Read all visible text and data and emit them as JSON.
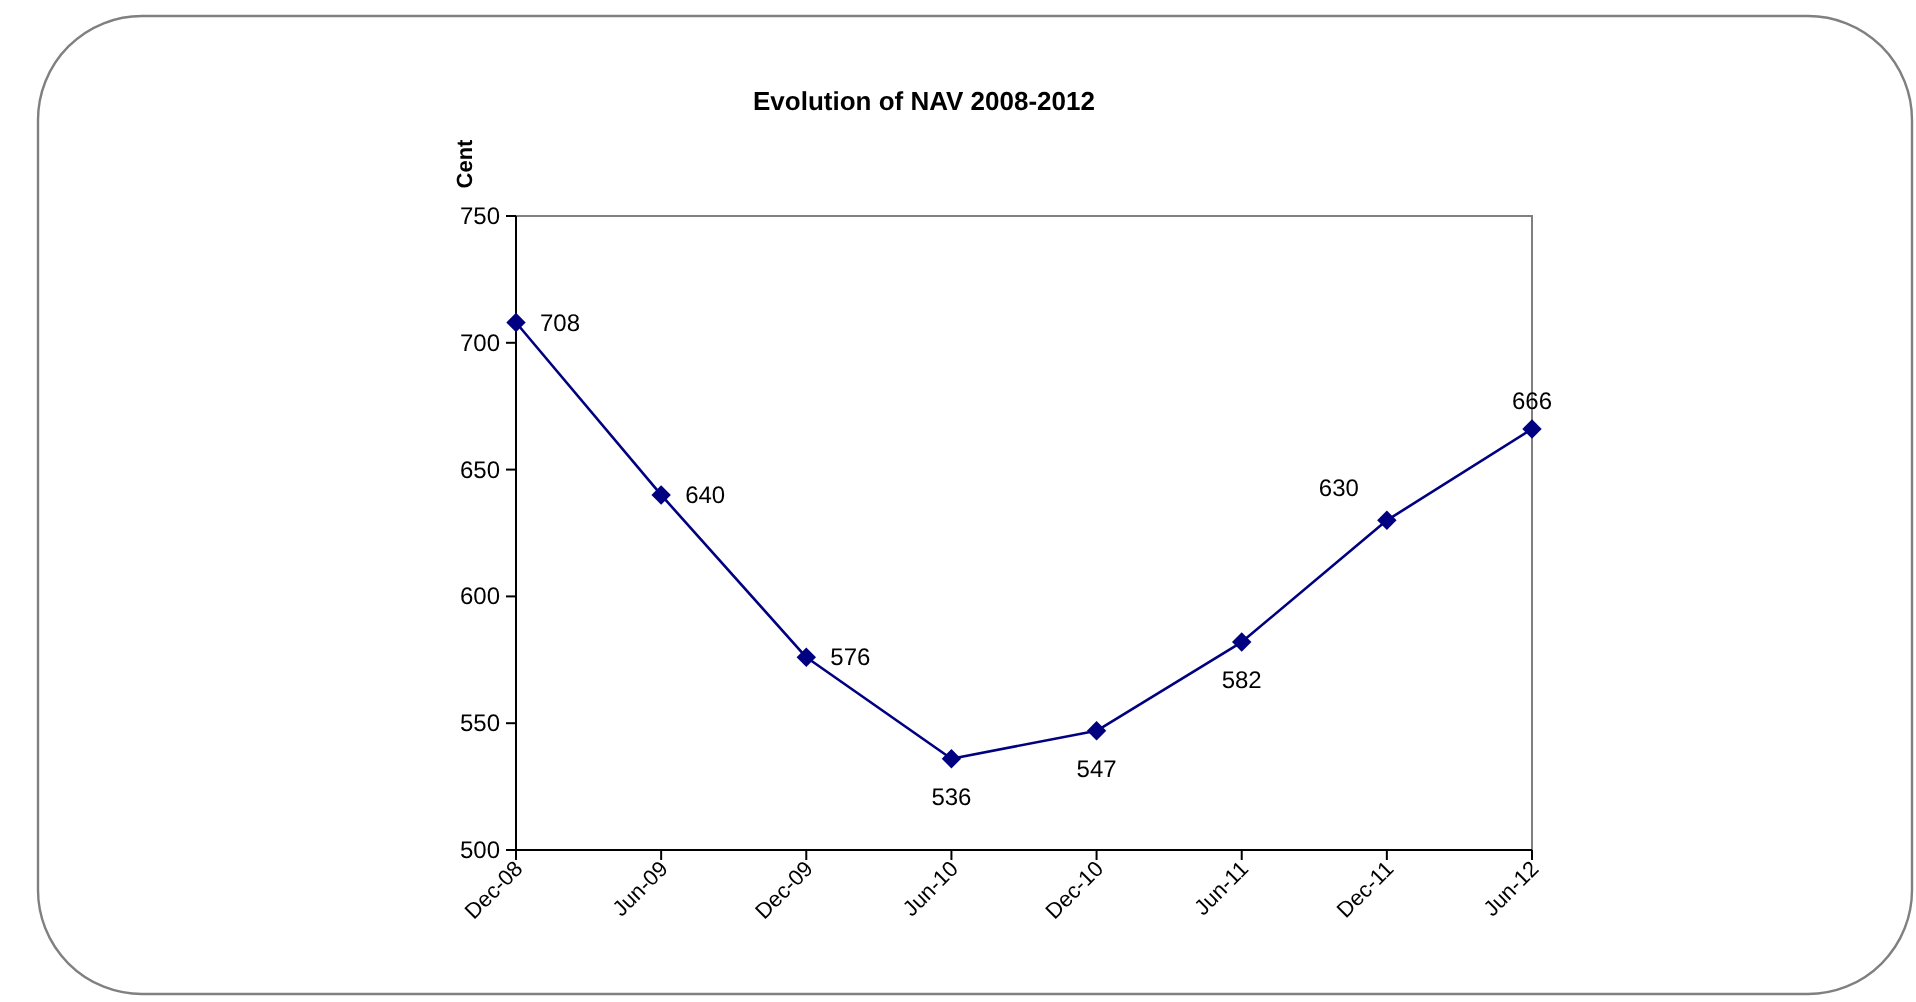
{
  "chart_data": {
    "type": "line",
    "title": "Evolution of NAV 2008-2012",
    "ylabel": "Cent",
    "categories": [
      "Dec-08",
      "Jun-09",
      "Dec-09",
      "Jun-10",
      "Dec-10",
      "Jun-11",
      "Dec-11",
      "Jun-12"
    ],
    "series": [
      {
        "color": "#000080",
        "values": [
          708,
          640,
          576,
          536,
          547,
          582,
          630,
          666
        ]
      }
    ],
    "ylim": [
      500,
      750
    ],
    "yticks": [
      500,
      550,
      600,
      650,
      700,
      750
    ],
    "grid": false,
    "marker": "diamond",
    "line_style": "solid",
    "data_labels": true
  }
}
